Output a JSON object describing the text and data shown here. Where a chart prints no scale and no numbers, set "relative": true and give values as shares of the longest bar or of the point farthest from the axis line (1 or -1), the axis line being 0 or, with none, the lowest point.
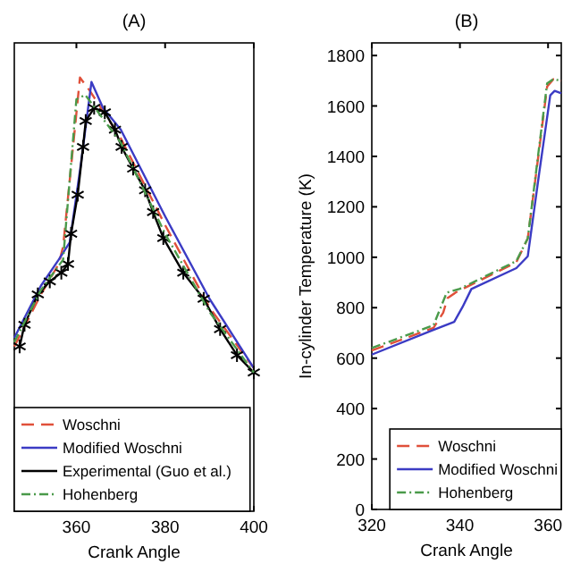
{
  "chart_data": [
    {
      "type": "line",
      "title": "(A)",
      "xlabel": "Crank Angle",
      "relative": true,
      "xlim": [
        346,
        400
      ],
      "xticks": [
        360,
        380,
        400
      ],
      "tick_labels": "x",
      "legend": "bottom left",
      "series": [
        {
          "name": "Woschni",
          "color": "#e0503a",
          "line_style": "dashed",
          "marker": "none",
          "x": [
            346,
            352,
            356,
            357,
            360.8,
            363,
            370,
            380,
            390,
            400
          ],
          "values": [
            0.38,
            0.5,
            0.57,
            0.61,
            1.0,
            0.97,
            0.86,
            0.66,
            0.47,
            0.33
          ]
        },
        {
          "name": "Modified Woschni",
          "color": "#3b3bc4",
          "line_style": "solid",
          "marker": "none",
          "x": [
            346,
            352,
            356,
            358.5,
            361,
            363.4,
            366,
            370,
            380,
            390,
            400
          ],
          "values": [
            0.4,
            0.52,
            0.58,
            0.62,
            0.8,
            0.99,
            0.93,
            0.88,
            0.68,
            0.49,
            0.33
          ]
        },
        {
          "name": "Experimental (Guo et al.)",
          "color": "#000000",
          "line_style": "solid",
          "marker": "cross",
          "x": [
            347.2,
            348.3,
            351.3,
            354,
            356.6,
            358.1,
            358.8,
            360.3,
            361.5,
            362.1,
            364,
            366.4,
            368.7,
            370.2,
            372.8,
            375.5,
            377.3,
            379.6,
            384.1,
            388.7,
            392.4,
            396.2,
            400
          ],
          "values": [
            0.38,
            0.43,
            0.5,
            0.53,
            0.55,
            0.57,
            0.64,
            0.73,
            0.84,
            0.9,
            0.93,
            0.92,
            0.88,
            0.84,
            0.79,
            0.74,
            0.69,
            0.63,
            0.55,
            0.49,
            0.42,
            0.36,
            0.32
          ]
        },
        {
          "name": "Hohenberg",
          "color": "#4a9a4a",
          "line_style": "dotted",
          "marker": "none",
          "x": [
            346,
            352,
            357,
            360,
            362,
            370,
            380,
            390,
            400
          ],
          "values": [
            0.39,
            0.51,
            0.58,
            0.95,
            0.96,
            0.85,
            0.64,
            0.46,
            0.32
          ]
        }
      ]
    },
    {
      "type": "line",
      "title": "(B)",
      "xlabel": "Crank Angle",
      "ylabel": "In-cylinder Temperature (K)",
      "xlim": [
        320,
        363
      ],
      "xticks": [
        320,
        340,
        360
      ],
      "ylim": [
        0,
        1850
      ],
      "yticks": [
        0,
        200,
        400,
        600,
        800,
        1000,
        1200,
        1400,
        1600,
        1800
      ],
      "legend": "bottom right",
      "series": [
        {
          "name": "Woschni",
          "color": "#e0503a",
          "line_style": "dashed",
          "marker": "none",
          "x": [
            320,
            334,
            336.2,
            337.2,
            339.2,
            352.8,
            355.4,
            358,
            359.8,
            361.2,
            363
          ],
          "values": [
            630,
            720,
            780,
            838,
            862,
            980,
            1075,
            1429,
            1677,
            1706,
            1700
          ]
        },
        {
          "name": "Modified Woschni",
          "color": "#3b3bc4",
          "line_style": "solid",
          "marker": "none",
          "x": [
            320,
            333.6,
            338.7,
            340.6,
            342.6,
            352.8,
            355.4,
            358,
            360.5,
            361.5,
            363
          ],
          "values": [
            614,
            709,
            744,
            803,
            874,
            957,
            1004,
            1335,
            1642,
            1660,
            1650
          ]
        },
        {
          "name": "Hohenberg",
          "color": "#4a9a4a",
          "line_style": "dotted",
          "marker": "none",
          "x": [
            320,
            334,
            337,
            340,
            352.8,
            355.4,
            358,
            359.8,
            361.2,
            363
          ],
          "values": [
            640,
            730,
            860,
            875,
            985,
            1075,
            1440,
            1690,
            1706,
            1700
          ]
        }
      ]
    }
  ]
}
